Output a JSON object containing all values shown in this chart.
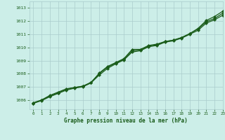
{
  "title": "Graphe pression niveau de la mer (hPa)",
  "bg_color": "#cceee8",
  "grid_color": "#aacccc",
  "line_color": "#1a5c1a",
  "xlim": [
    -0.5,
    23
  ],
  "ylim": [
    1005.3,
    1013.5
  ],
  "yticks": [
    1006,
    1007,
    1008,
    1009,
    1010,
    1011,
    1012,
    1013
  ],
  "xticks": [
    0,
    1,
    2,
    3,
    4,
    5,
    6,
    7,
    8,
    9,
    10,
    11,
    12,
    13,
    14,
    15,
    16,
    17,
    18,
    19,
    20,
    21,
    22,
    23
  ],
  "line1_x": [
    0,
    1,
    2,
    3,
    4,
    5,
    6,
    7,
    8,
    9,
    10,
    11,
    12,
    13,
    14,
    15,
    16,
    17,
    18,
    19,
    20,
    21,
    22,
    23
  ],
  "line1_y": [
    1005.8,
    1006.0,
    1006.35,
    1006.6,
    1006.85,
    1006.95,
    1007.05,
    1007.3,
    1008.05,
    1008.55,
    1008.85,
    1009.15,
    1009.85,
    1009.85,
    1010.15,
    1010.25,
    1010.45,
    1010.55,
    1010.75,
    1011.05,
    1011.45,
    1012.05,
    1012.35,
    1012.75
  ],
  "line2_x": [
    0,
    1,
    2,
    3,
    4,
    5,
    6,
    7,
    8,
    9,
    10,
    11,
    12,
    13,
    14,
    15,
    16,
    17,
    18,
    19,
    20,
    21,
    22,
    23
  ],
  "line2_y": [
    1005.75,
    1006.0,
    1006.3,
    1006.55,
    1006.8,
    1006.95,
    1007.05,
    1007.35,
    1008.0,
    1008.5,
    1008.8,
    1009.1,
    1009.75,
    1009.8,
    1010.1,
    1010.2,
    1010.45,
    1010.55,
    1010.75,
    1011.05,
    1011.4,
    1011.95,
    1012.2,
    1012.6
  ],
  "line3_x": [
    0,
    1,
    2,
    3,
    4,
    5,
    6,
    7,
    8,
    9,
    10,
    11,
    12,
    13,
    14,
    15,
    16,
    17,
    18,
    19,
    20,
    21,
    22,
    23
  ],
  "line3_y": [
    1005.75,
    1005.95,
    1006.25,
    1006.5,
    1006.75,
    1006.9,
    1007.0,
    1007.3,
    1007.9,
    1008.4,
    1008.75,
    1009.05,
    1009.65,
    1009.75,
    1010.05,
    1010.15,
    1010.4,
    1010.5,
    1010.7,
    1011.0,
    1011.3,
    1011.85,
    1012.1,
    1012.45
  ]
}
